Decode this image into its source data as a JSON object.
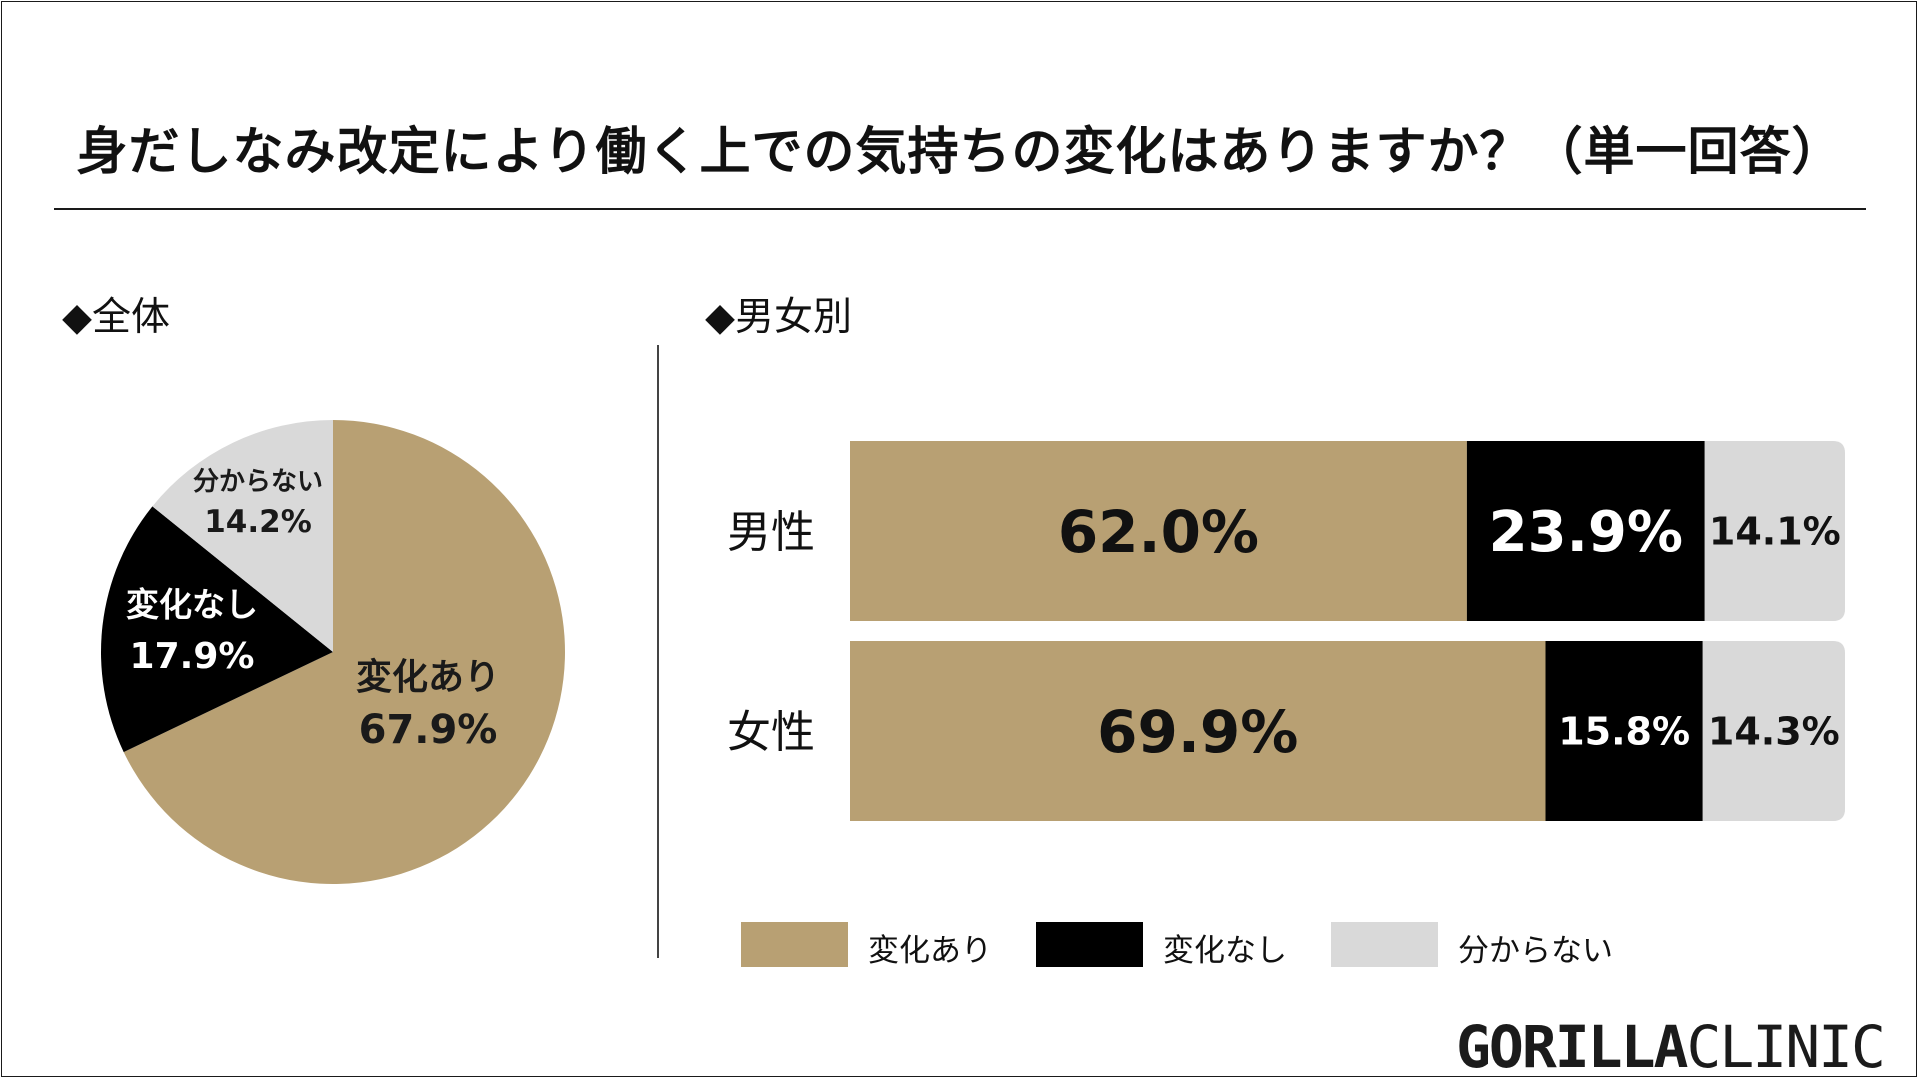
{
  "title": "身だしなみ改定により働く上での気持ちの変化はありますか？（単一回答）",
  "colors": {
    "change": "#b8a073",
    "no_change": "#000000",
    "unknown": "#d9d9d9"
  },
  "brand": {
    "part1": "GORILLA",
    "part2": "CLINIC"
  },
  "chart_data": [
    {
      "type": "pie",
      "title": "◆全体",
      "slices": [
        {
          "label": "変化あり",
          "value": 67.9,
          "value_label": "67.9%",
          "color": "#b8a073",
          "text_color": "#1a1a1a"
        },
        {
          "label": "変化なし",
          "value": 17.9,
          "value_label": "17.9%",
          "color": "#000000",
          "text_color": "#ffffff"
        },
        {
          "label": "分からない",
          "value": 14.2,
          "value_label": "14.2%",
          "color": "#d9d9d9",
          "text_color": "#1a1a1a"
        }
      ]
    },
    {
      "type": "bar",
      "orientation": "horizontal",
      "stacked": true,
      "title": "◆男女別",
      "categories": [
        "男性",
        "女性"
      ],
      "series": [
        {
          "name": "変化あり",
          "color": "#b8a073",
          "values": [
            62.0,
            69.9
          ],
          "labels": [
            "62.0%",
            "69.9%"
          ]
        },
        {
          "name": "変化なし",
          "color": "#000000",
          "values": [
            23.9,
            15.8
          ],
          "labels": [
            "23.9%",
            "15.8%"
          ]
        },
        {
          "name": "分からない",
          "color": "#d9d9d9",
          "values": [
            14.1,
            14.3
          ],
          "labels": [
            "14.1%",
            "14.3%"
          ]
        }
      ],
      "xlim": [
        0,
        100
      ],
      "legend_position": "bottom"
    }
  ]
}
